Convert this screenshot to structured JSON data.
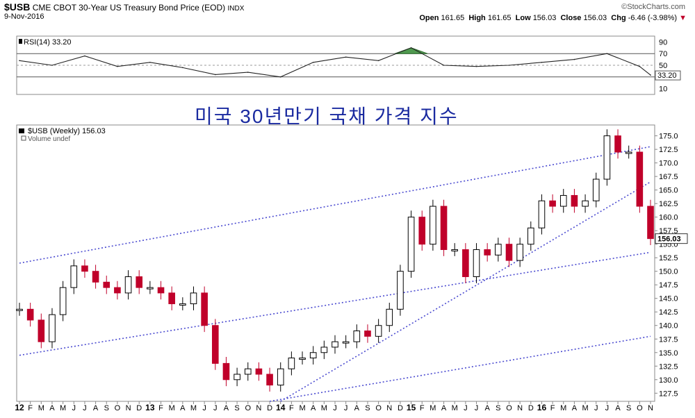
{
  "header": {
    "symbol": "$USB",
    "description": "CME CBOT 30-Year US Treasury Bond Price (EOD)",
    "exchange": "INDX",
    "date": "9-Nov-2016",
    "brand": "©StockCharts.com",
    "open_label": "Open",
    "open": "161.65",
    "high_label": "High",
    "high": "161.65",
    "low_label": "Low",
    "low": "156.03",
    "close_label": "Close",
    "close": "156.03",
    "chg_label": "Chg",
    "chg": "-6.46 (-3.98%)",
    "chg_marker": "▼",
    "colors": {
      "down": "#c0002a",
      "up": "#000000",
      "trend": "#4a4ad0",
      "rsi_fill": "#4f9a4f"
    }
  },
  "annotation": "미국 30년만기 국채 가격 지수",
  "rsi_panel": {
    "label": "RSI(14) 33.20",
    "current": "33.20",
    "ticks": [
      "90",
      "70",
      "50",
      "30",
      "10"
    ]
  },
  "price_panel": {
    "label": "$USB (Weekly) 156.03",
    "volume_label": "Volume undef",
    "current": "156.03",
    "ticks": [
      "175.0",
      "172.5",
      "170.0",
      "167.5",
      "165.0",
      "162.5",
      "160.0",
      "157.5",
      "155.0",
      "152.5",
      "150.0",
      "147.5",
      "145.0",
      "142.5",
      "140.0",
      "137.5",
      "135.0",
      "132.5",
      "130.0",
      "127.5"
    ]
  },
  "chart_data": [
    {
      "type": "line",
      "name": "RSI(14)",
      "title": "RSI(14) 33.20",
      "ylim": [
        0,
        100
      ],
      "reference_lines": [
        70,
        30
      ],
      "x": [
        "2012-01",
        "2012-04",
        "2012-07",
        "2012-10",
        "2013-01",
        "2013-04",
        "2013-07",
        "2013-10",
        "2014-01",
        "2014-04",
        "2014-07",
        "2014-10",
        "2015-01",
        "2015-04",
        "2015-07",
        "2015-10",
        "2016-01",
        "2016-04",
        "2016-07",
        "2016-10",
        "2016-11"
      ],
      "values": [
        58,
        50,
        66,
        48,
        55,
        46,
        34,
        38,
        30,
        55,
        64,
        58,
        80,
        50,
        48,
        50,
        55,
        60,
        70,
        48,
        33.2
      ]
    },
    {
      "type": "line",
      "name": "$USB (Weekly)",
      "title": "$USB (Weekly) 156.03",
      "ylim": [
        126,
        177
      ],
      "x_ticks": [
        "12",
        "F",
        "M",
        "A",
        "M",
        "J",
        "J",
        "A",
        "S",
        "O",
        "N",
        "D",
        "13",
        "F",
        "M",
        "A",
        "M",
        "J",
        "J",
        "A",
        "S",
        "O",
        "N",
        "D",
        "14",
        "F",
        "M",
        "A",
        "M",
        "J",
        "J",
        "A",
        "S",
        "O",
        "N",
        "D",
        "15",
        "F",
        "M",
        "A",
        "M",
        "J",
        "J",
        "A",
        "S",
        "O",
        "N",
        "D",
        "16",
        "F",
        "M",
        "A",
        "M",
        "J",
        "J",
        "A",
        "S",
        "O",
        "N"
      ],
      "x": [
        "2012-01",
        "2012-02",
        "2012-03",
        "2012-04",
        "2012-05",
        "2012-06",
        "2012-07",
        "2012-08",
        "2012-09",
        "2012-10",
        "2012-11",
        "2012-12",
        "2013-01",
        "2013-02",
        "2013-03",
        "2013-04",
        "2013-05",
        "2013-06",
        "2013-07",
        "2013-08",
        "2013-09",
        "2013-10",
        "2013-11",
        "2013-12",
        "2014-01",
        "2014-02",
        "2014-03",
        "2014-04",
        "2014-05",
        "2014-06",
        "2014-07",
        "2014-08",
        "2014-09",
        "2014-10",
        "2014-11",
        "2014-12",
        "2015-01",
        "2015-02",
        "2015-03",
        "2015-04",
        "2015-05",
        "2015-06",
        "2015-07",
        "2015-08",
        "2015-09",
        "2015-10",
        "2015-11",
        "2015-12",
        "2016-01",
        "2016-02",
        "2016-03",
        "2016-04",
        "2016-05",
        "2016-06",
        "2016-07",
        "2016-08",
        "2016-09",
        "2016-10",
        "2016-11"
      ],
      "values": [
        143,
        141,
        137,
        142,
        147,
        151,
        150,
        148,
        147,
        146,
        149,
        147,
        147,
        146,
        144,
        144,
        146,
        140,
        133,
        130,
        131,
        132,
        131,
        129,
        132,
        134,
        134,
        135,
        136,
        137,
        137,
        139,
        138,
        140,
        143,
        150,
        160,
        155,
        162,
        154,
        154,
        149,
        154,
        153,
        155,
        152,
        155,
        158,
        163,
        162,
        164,
        162,
        163,
        167,
        175,
        172,
        172,
        162,
        156.03
      ],
      "last_value": 156.03,
      "trendlines": [
        {
          "from": [
            "2012-01",
            151.5
          ],
          "to": [
            "2016-11",
            173.0
          ]
        },
        {
          "from": [
            "2012-01",
            134.5
          ],
          "to": [
            "2016-11",
            153.5
          ]
        },
        {
          "from": [
            "2014-01",
            126.0
          ],
          "to": [
            "2016-11",
            166.5
          ]
        },
        {
          "from": [
            "2013-12",
            126.0
          ],
          "to": [
            "2016-11",
            138.0
          ]
        }
      ]
    }
  ]
}
